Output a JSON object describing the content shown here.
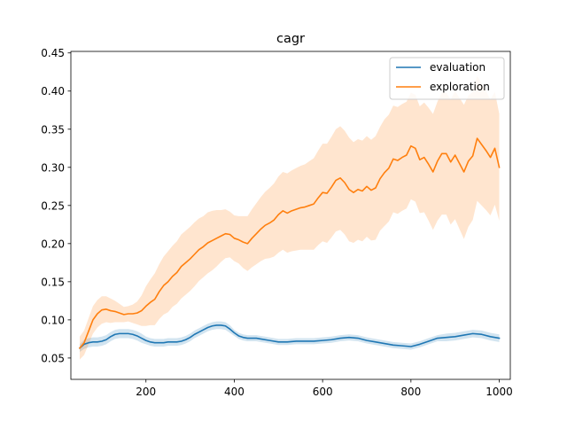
{
  "chart_data": {
    "type": "line",
    "title": "cagr",
    "xlabel": "",
    "ylabel": "",
    "xlim": [
      30,
      1025
    ],
    "ylim": [
      0.022,
      0.452
    ],
    "xticks": [
      200,
      400,
      600,
      800,
      1000
    ],
    "xtick_labels": [
      "200",
      "400",
      "600",
      "800",
      "1000"
    ],
    "yticks": [
      0.05,
      0.1,
      0.15,
      0.2,
      0.25,
      0.3,
      0.35,
      0.4,
      0.45
    ],
    "ytick_labels": [
      "0.05",
      "0.10",
      "0.15",
      "0.20",
      "0.25",
      "0.30",
      "0.35",
      "0.40",
      "0.45"
    ],
    "grid": false,
    "legend_position": "top-right",
    "series": [
      {
        "name": "evaluation",
        "color": "#1f77b4",
        "x": [
          50,
          60,
          70,
          80,
          90,
          100,
          110,
          120,
          130,
          140,
          150,
          160,
          170,
          180,
          190,
          200,
          210,
          220,
          230,
          240,
          250,
          260,
          270,
          280,
          290,
          300,
          310,
          320,
          330,
          340,
          350,
          360,
          370,
          380,
          390,
          400,
          410,
          420,
          430,
          440,
          450,
          460,
          480,
          500,
          520,
          540,
          560,
          580,
          600,
          620,
          640,
          660,
          680,
          700,
          720,
          740,
          760,
          780,
          800,
          820,
          840,
          860,
          880,
          900,
          920,
          940,
          960,
          980,
          1000
        ],
        "y": [
          0.063,
          0.068,
          0.07,
          0.071,
          0.071,
          0.072,
          0.074,
          0.078,
          0.081,
          0.082,
          0.082,
          0.082,
          0.081,
          0.079,
          0.076,
          0.073,
          0.071,
          0.07,
          0.07,
          0.07,
          0.071,
          0.071,
          0.071,
          0.072,
          0.074,
          0.077,
          0.081,
          0.084,
          0.087,
          0.09,
          0.092,
          0.093,
          0.093,
          0.092,
          0.088,
          0.083,
          0.079,
          0.077,
          0.076,
          0.076,
          0.076,
          0.075,
          0.073,
          0.071,
          0.071,
          0.072,
          0.072,
          0.072,
          0.073,
          0.074,
          0.076,
          0.077,
          0.076,
          0.073,
          0.071,
          0.069,
          0.067,
          0.066,
          0.065,
          0.068,
          0.072,
          0.076,
          0.077,
          0.078,
          0.08,
          0.082,
          0.081,
          0.078,
          0.076
        ],
        "band": [
          0.005,
          0.006,
          0.006,
          0.006,
          0.006,
          0.006,
          0.006,
          0.006,
          0.006,
          0.006,
          0.006,
          0.006,
          0.006,
          0.006,
          0.006,
          0.005,
          0.005,
          0.005,
          0.005,
          0.005,
          0.005,
          0.005,
          0.005,
          0.005,
          0.005,
          0.005,
          0.005,
          0.005,
          0.005,
          0.005,
          0.005,
          0.005,
          0.005,
          0.005,
          0.005,
          0.004,
          0.004,
          0.004,
          0.004,
          0.004,
          0.004,
          0.004,
          0.004,
          0.004,
          0.004,
          0.004,
          0.004,
          0.004,
          0.004,
          0.004,
          0.004,
          0.004,
          0.004,
          0.004,
          0.004,
          0.004,
          0.004,
          0.004,
          0.004,
          0.004,
          0.004,
          0.004,
          0.005,
          0.005,
          0.005,
          0.005,
          0.005,
          0.005,
          0.005
        ]
      },
      {
        "name": "exploration",
        "color": "#ff7f0e",
        "x": [
          50,
          60,
          70,
          80,
          90,
          100,
          110,
          120,
          130,
          140,
          150,
          160,
          170,
          180,
          190,
          200,
          210,
          220,
          230,
          240,
          250,
          260,
          270,
          280,
          290,
          300,
          310,
          320,
          330,
          340,
          350,
          360,
          370,
          380,
          390,
          400,
          410,
          420,
          430,
          440,
          450,
          460,
          470,
          480,
          490,
          500,
          510,
          520,
          530,
          540,
          550,
          560,
          570,
          580,
          590,
          600,
          610,
          620,
          630,
          640,
          650,
          660,
          670,
          680,
          690,
          700,
          710,
          720,
          730,
          740,
          750,
          760,
          770,
          780,
          790,
          800,
          810,
          820,
          830,
          840,
          850,
          860,
          870,
          880,
          890,
          900,
          910,
          920,
          930,
          940,
          950,
          960,
          970,
          980,
          990,
          1000
        ],
        "y": [
          0.063,
          0.07,
          0.085,
          0.1,
          0.108,
          0.113,
          0.114,
          0.112,
          0.111,
          0.109,
          0.107,
          0.108,
          0.108,
          0.109,
          0.112,
          0.118,
          0.123,
          0.127,
          0.137,
          0.145,
          0.15,
          0.157,
          0.162,
          0.17,
          0.175,
          0.18,
          0.186,
          0.192,
          0.196,
          0.201,
          0.204,
          0.207,
          0.21,
          0.213,
          0.212,
          0.207,
          0.205,
          0.202,
          0.2,
          0.207,
          0.213,
          0.219,
          0.224,
          0.227,
          0.231,
          0.238,
          0.243,
          0.24,
          0.243,
          0.245,
          0.247,
          0.248,
          0.25,
          0.252,
          0.26,
          0.267,
          0.266,
          0.274,
          0.283,
          0.286,
          0.28,
          0.271,
          0.267,
          0.271,
          0.269,
          0.275,
          0.27,
          0.273,
          0.285,
          0.293,
          0.299,
          0.311,
          0.309,
          0.313,
          0.316,
          0.328,
          0.325,
          0.31,
          0.313,
          0.304,
          0.294,
          0.308,
          0.318,
          0.318,
          0.307,
          0.316,
          0.305,
          0.294,
          0.308,
          0.315,
          0.338,
          0.33,
          0.322,
          0.313,
          0.325,
          0.3
        ],
        "band": [
          0.015,
          0.016,
          0.017,
          0.018,
          0.018,
          0.018,
          0.017,
          0.016,
          0.014,
          0.012,
          0.01,
          0.01,
          0.012,
          0.015,
          0.02,
          0.026,
          0.03,
          0.034,
          0.036,
          0.038,
          0.04,
          0.04,
          0.041,
          0.042,
          0.042,
          0.042,
          0.042,
          0.041,
          0.04,
          0.04,
          0.039,
          0.037,
          0.034,
          0.032,
          0.03,
          0.03,
          0.031,
          0.034,
          0.036,
          0.038,
          0.04,
          0.042,
          0.044,
          0.046,
          0.048,
          0.05,
          0.051,
          0.052,
          0.053,
          0.054,
          0.055,
          0.056,
          0.058,
          0.06,
          0.062,
          0.064,
          0.065,
          0.066,
          0.067,
          0.068,
          0.068,
          0.068,
          0.066,
          0.066,
          0.066,
          0.066,
          0.066,
          0.068,
          0.068,
          0.07,
          0.07,
          0.07,
          0.07,
          0.07,
          0.07,
          0.07,
          0.07,
          0.07,
          0.072,
          0.074,
          0.076,
          0.078,
          0.08,
          0.08,
          0.082,
          0.084,
          0.086,
          0.088,
          0.086,
          0.084,
          0.082,
          0.08,
          0.078,
          0.076,
          0.074,
          0.07
        ]
      }
    ]
  }
}
